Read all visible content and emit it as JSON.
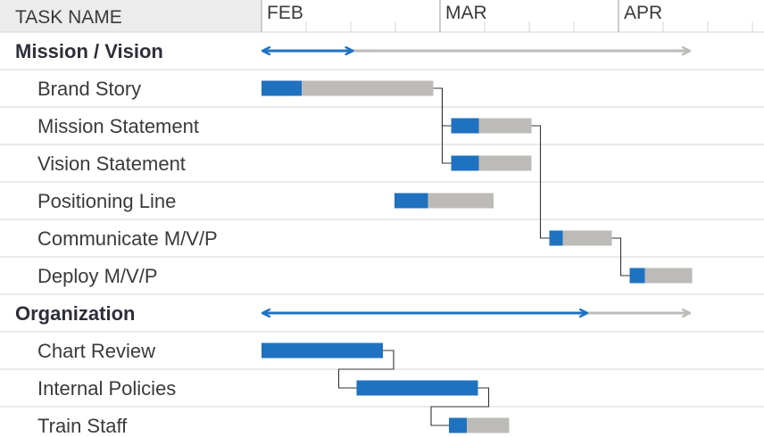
{
  "header": {
    "task_column_label": "TASK NAME",
    "header_bg": "#ececec"
  },
  "chart_data": {
    "type": "gantt",
    "time_unit": "week",
    "months": [
      {
        "label": "FEB",
        "start_week": 0
      },
      {
        "label": "MAR",
        "start_week": 4
      },
      {
        "label": "APR",
        "start_week": 8
      }
    ],
    "total_weeks": 11.2,
    "colors": {
      "progress": "#1f72c0",
      "remaining": "#bdbbb8",
      "grid": "#d6d6d6",
      "connector": "#333333"
    },
    "rows": [
      {
        "kind": "group",
        "label": "Mission / Vision",
        "start": 0,
        "end": 9.6,
        "complete": 2.05
      },
      {
        "kind": "task",
        "label": "Brand Story",
        "start": 0,
        "end": 3.85,
        "complete": 0.9
      },
      {
        "kind": "task",
        "label": "Mission Statement",
        "start": 4.25,
        "end": 6.05,
        "complete": 0.62
      },
      {
        "kind": "task",
        "label": "Vision Statement",
        "start": 4.25,
        "end": 6.05,
        "complete": 0.62
      },
      {
        "kind": "task",
        "label": "Positioning Line",
        "start": 2.98,
        "end": 5.2,
        "complete": 0.75
      },
      {
        "kind": "task",
        "label": "Communicate M/V/P",
        "start": 6.45,
        "end": 7.85,
        "complete": 0.3
      },
      {
        "kind": "task",
        "label": "Deploy M/V/P",
        "start": 8.25,
        "end": 9.65,
        "complete": 0.34
      },
      {
        "kind": "group",
        "label": "Organization",
        "start": 0,
        "end": 9.6,
        "complete": 7.3
      },
      {
        "kind": "task",
        "label": "Chart Review",
        "start": 0,
        "end": 2.72,
        "complete": 2.72
      },
      {
        "kind": "task",
        "label": "Internal Policies",
        "start": 2.13,
        "end": 4.85,
        "complete": 2.72
      },
      {
        "kind": "task",
        "label": "Train Staff",
        "start": 4.2,
        "end": 5.55,
        "complete": 0.4
      }
    ],
    "dependencies": [
      {
        "from": 1,
        "to": 2
      },
      {
        "from": 1,
        "to": 3
      },
      {
        "from": 2,
        "to": 5
      },
      {
        "from": 5,
        "to": 6
      },
      {
        "from": 8,
        "to": 9
      },
      {
        "from": 9,
        "to": 10
      }
    ]
  }
}
